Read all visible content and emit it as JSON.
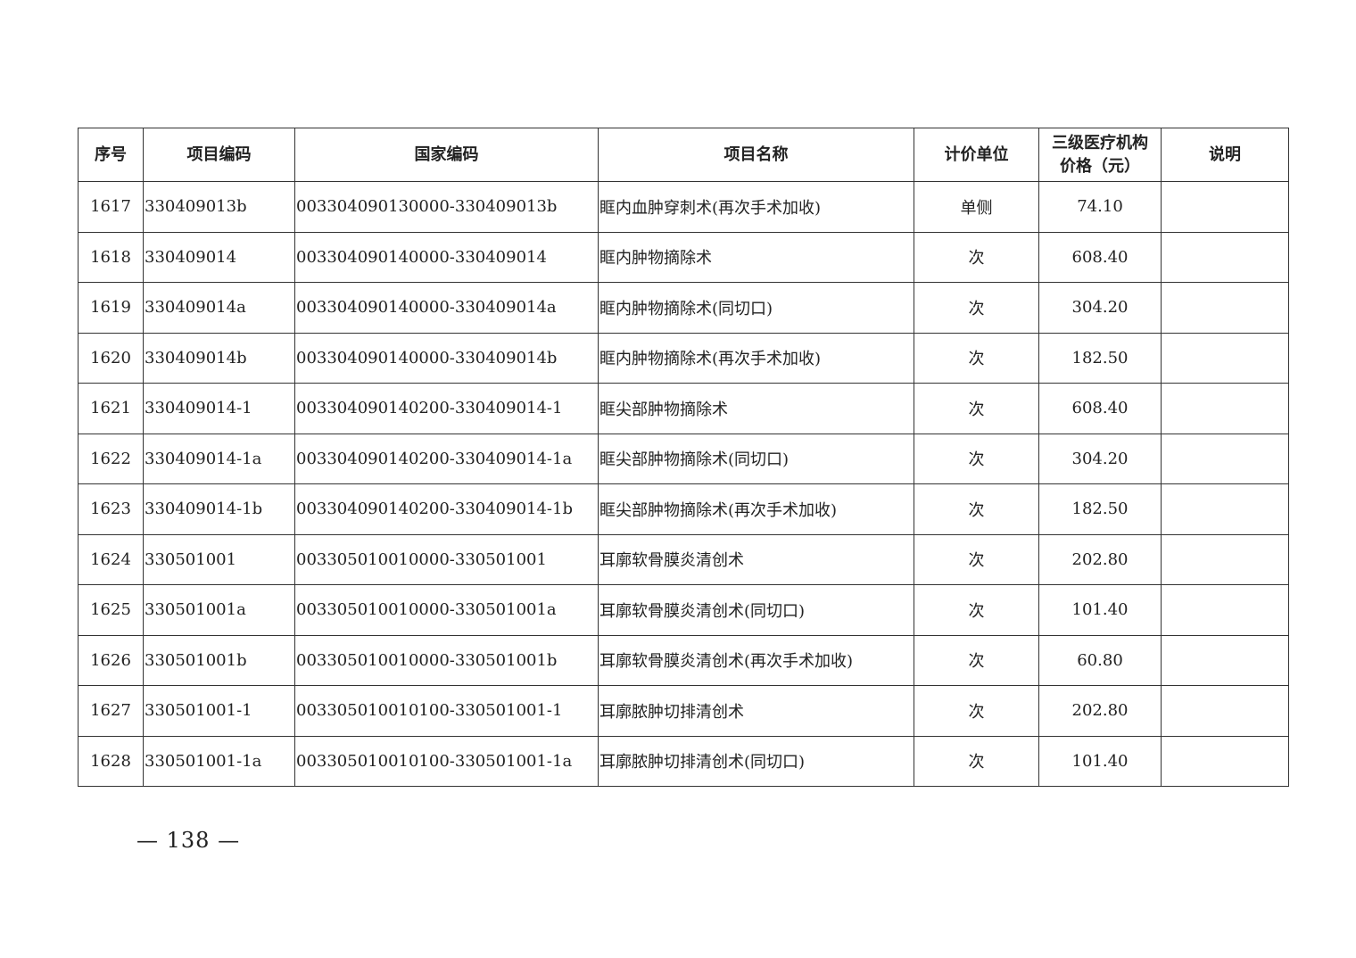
{
  "table": {
    "headers": [
      "序号",
      "项目编码",
      "国家编码",
      "项目名称",
      "计价单位",
      "三级医疗机构\n价格（元）",
      "说明"
    ],
    "header_price_line1": "三级医疗机构",
    "header_price_line2": "价格（元）",
    "rows": [
      [
        "1617",
        "330409013b",
        "003304090130000-330409013b",
        "眶内血肿穿刺术(再次手术加收)",
        "单侧",
        "74.10",
        ""
      ],
      [
        "1618",
        "330409014",
        "003304090140000-330409014",
        "眶内肿物摘除术",
        "次",
        "608.40",
        ""
      ],
      [
        "1619",
        "330409014a",
        "003304090140000-330409014a",
        "眶内肿物摘除术(同切口)",
        "次",
        "304.20",
        ""
      ],
      [
        "1620",
        "330409014b",
        "003304090140000-330409014b",
        "眶内肿物摘除术(再次手术加收)",
        "次",
        "182.50",
        ""
      ],
      [
        "1621",
        "330409014-1",
        "003304090140200-330409014-1",
        "眶尖部肿物摘除术",
        "次",
        "608.40",
        ""
      ],
      [
        "1622",
        "330409014-1a",
        "003304090140200-330409014-1a",
        "眶尖部肿物摘除术(同切口)",
        "次",
        "304.20",
        ""
      ],
      [
        "1623",
        "330409014-1b",
        "003304090140200-330409014-1b",
        "眶尖部肿物摘除术(再次手术加收)",
        "次",
        "182.50",
        ""
      ],
      [
        "1624",
        "330501001",
        "003305010010000-330501001",
        "耳廓软骨膜炎清创术",
        "次",
        "202.80",
        ""
      ],
      [
        "1625",
        "330501001a",
        "003305010010000-330501001a",
        "耳廓软骨膜炎清创术(同切口)",
        "次",
        "101.40",
        ""
      ],
      [
        "1626",
        "330501001b",
        "003305010010000-330501001b",
        "耳廓软骨膜炎清创术(再次手术加收)",
        "次",
        "60.80",
        ""
      ],
      [
        "1627",
        "330501001-1",
        "003305010010100-330501001-1",
        "耳廓脓肿切排清创术",
        "次",
        "202.80",
        ""
      ],
      [
        "1628",
        "330501001-1a",
        "003305010010100-330501001-1a",
        "耳廓脓肿切排清创术(同切口)",
        "次",
        "101.40",
        ""
      ]
    ]
  },
  "page_number": "— 138 —"
}
